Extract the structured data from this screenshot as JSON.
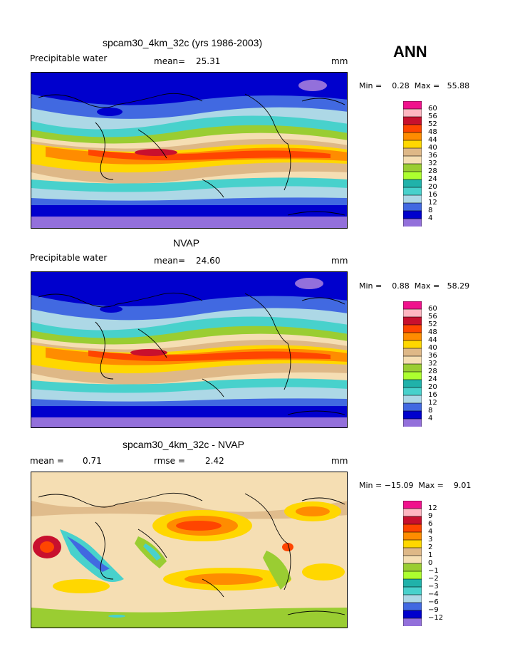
{
  "season": "ANN",
  "panels": [
    {
      "title": "spcam30_4km_32c (yrs 1986-2003)",
      "left_label": "Precipitable water",
      "stat1_label": "mean=",
      "stat1_value": "25.31",
      "stat2_label": "",
      "stat2_value": "",
      "unit": "mm",
      "minmax": "Min =    0.28  Max =   55.88",
      "legend_levels": [
        "60",
        "56",
        "52",
        "48",
        "44",
        "40",
        "36",
        "32",
        "28",
        "24",
        "20",
        "16",
        "12",
        "8",
        "4"
      ],
      "legend_colors": [
        "#f0128c",
        "#ffb6c1",
        "#c8102e",
        "#ff4500",
        "#ff8c00",
        "#ffd700",
        "#deb887",
        "#f5deb3",
        "#9acd32",
        "#adff2f",
        "#20b2aa",
        "#48d1cc",
        "#add8e6",
        "#4169e1",
        "#0000cd",
        "#9370db"
      ]
    },
    {
      "title": "NVAP",
      "left_label": "Precipitable water",
      "stat1_label": "mean=",
      "stat1_value": "24.60",
      "stat2_label": "",
      "stat2_value": "",
      "unit": "mm",
      "minmax": "Min =    0.88  Max =   58.29",
      "legend_levels": [
        "60",
        "56",
        "52",
        "48",
        "44",
        "40",
        "36",
        "32",
        "28",
        "24",
        "20",
        "16",
        "12",
        "8",
        "4"
      ],
      "legend_colors": [
        "#f0128c",
        "#ffb6c1",
        "#c8102e",
        "#ff4500",
        "#ff8c00",
        "#ffd700",
        "#deb887",
        "#f5deb3",
        "#9acd32",
        "#adff2f",
        "#20b2aa",
        "#48d1cc",
        "#add8e6",
        "#4169e1",
        "#0000cd",
        "#9370db"
      ]
    },
    {
      "title": "spcam30_4km_32c - NVAP",
      "left_label": "",
      "stat1_label": "mean =",
      "stat1_value": "0.71",
      "stat2_label": "rmse =",
      "stat2_value": "2.42",
      "unit": "mm",
      "minmax": "Min = −15.09  Max =    9.01",
      "legend_levels": [
        "12",
        "9",
        "6",
        "4",
        "3",
        "2",
        "1",
        "0",
        "−1",
        "−2",
        "−3",
        "−4",
        "−6",
        "−9",
        "−12"
      ],
      "legend_colors": [
        "#f0128c",
        "#ffb6c1",
        "#c8102e",
        "#ff4500",
        "#ff8c00",
        "#ffd700",
        "#deb887",
        "#f5deb3",
        "#9acd32",
        "#adff2f",
        "#20b2aa",
        "#48d1cc",
        "#add8e6",
        "#4169e1",
        "#0000cd",
        "#9370db"
      ]
    }
  ]
}
